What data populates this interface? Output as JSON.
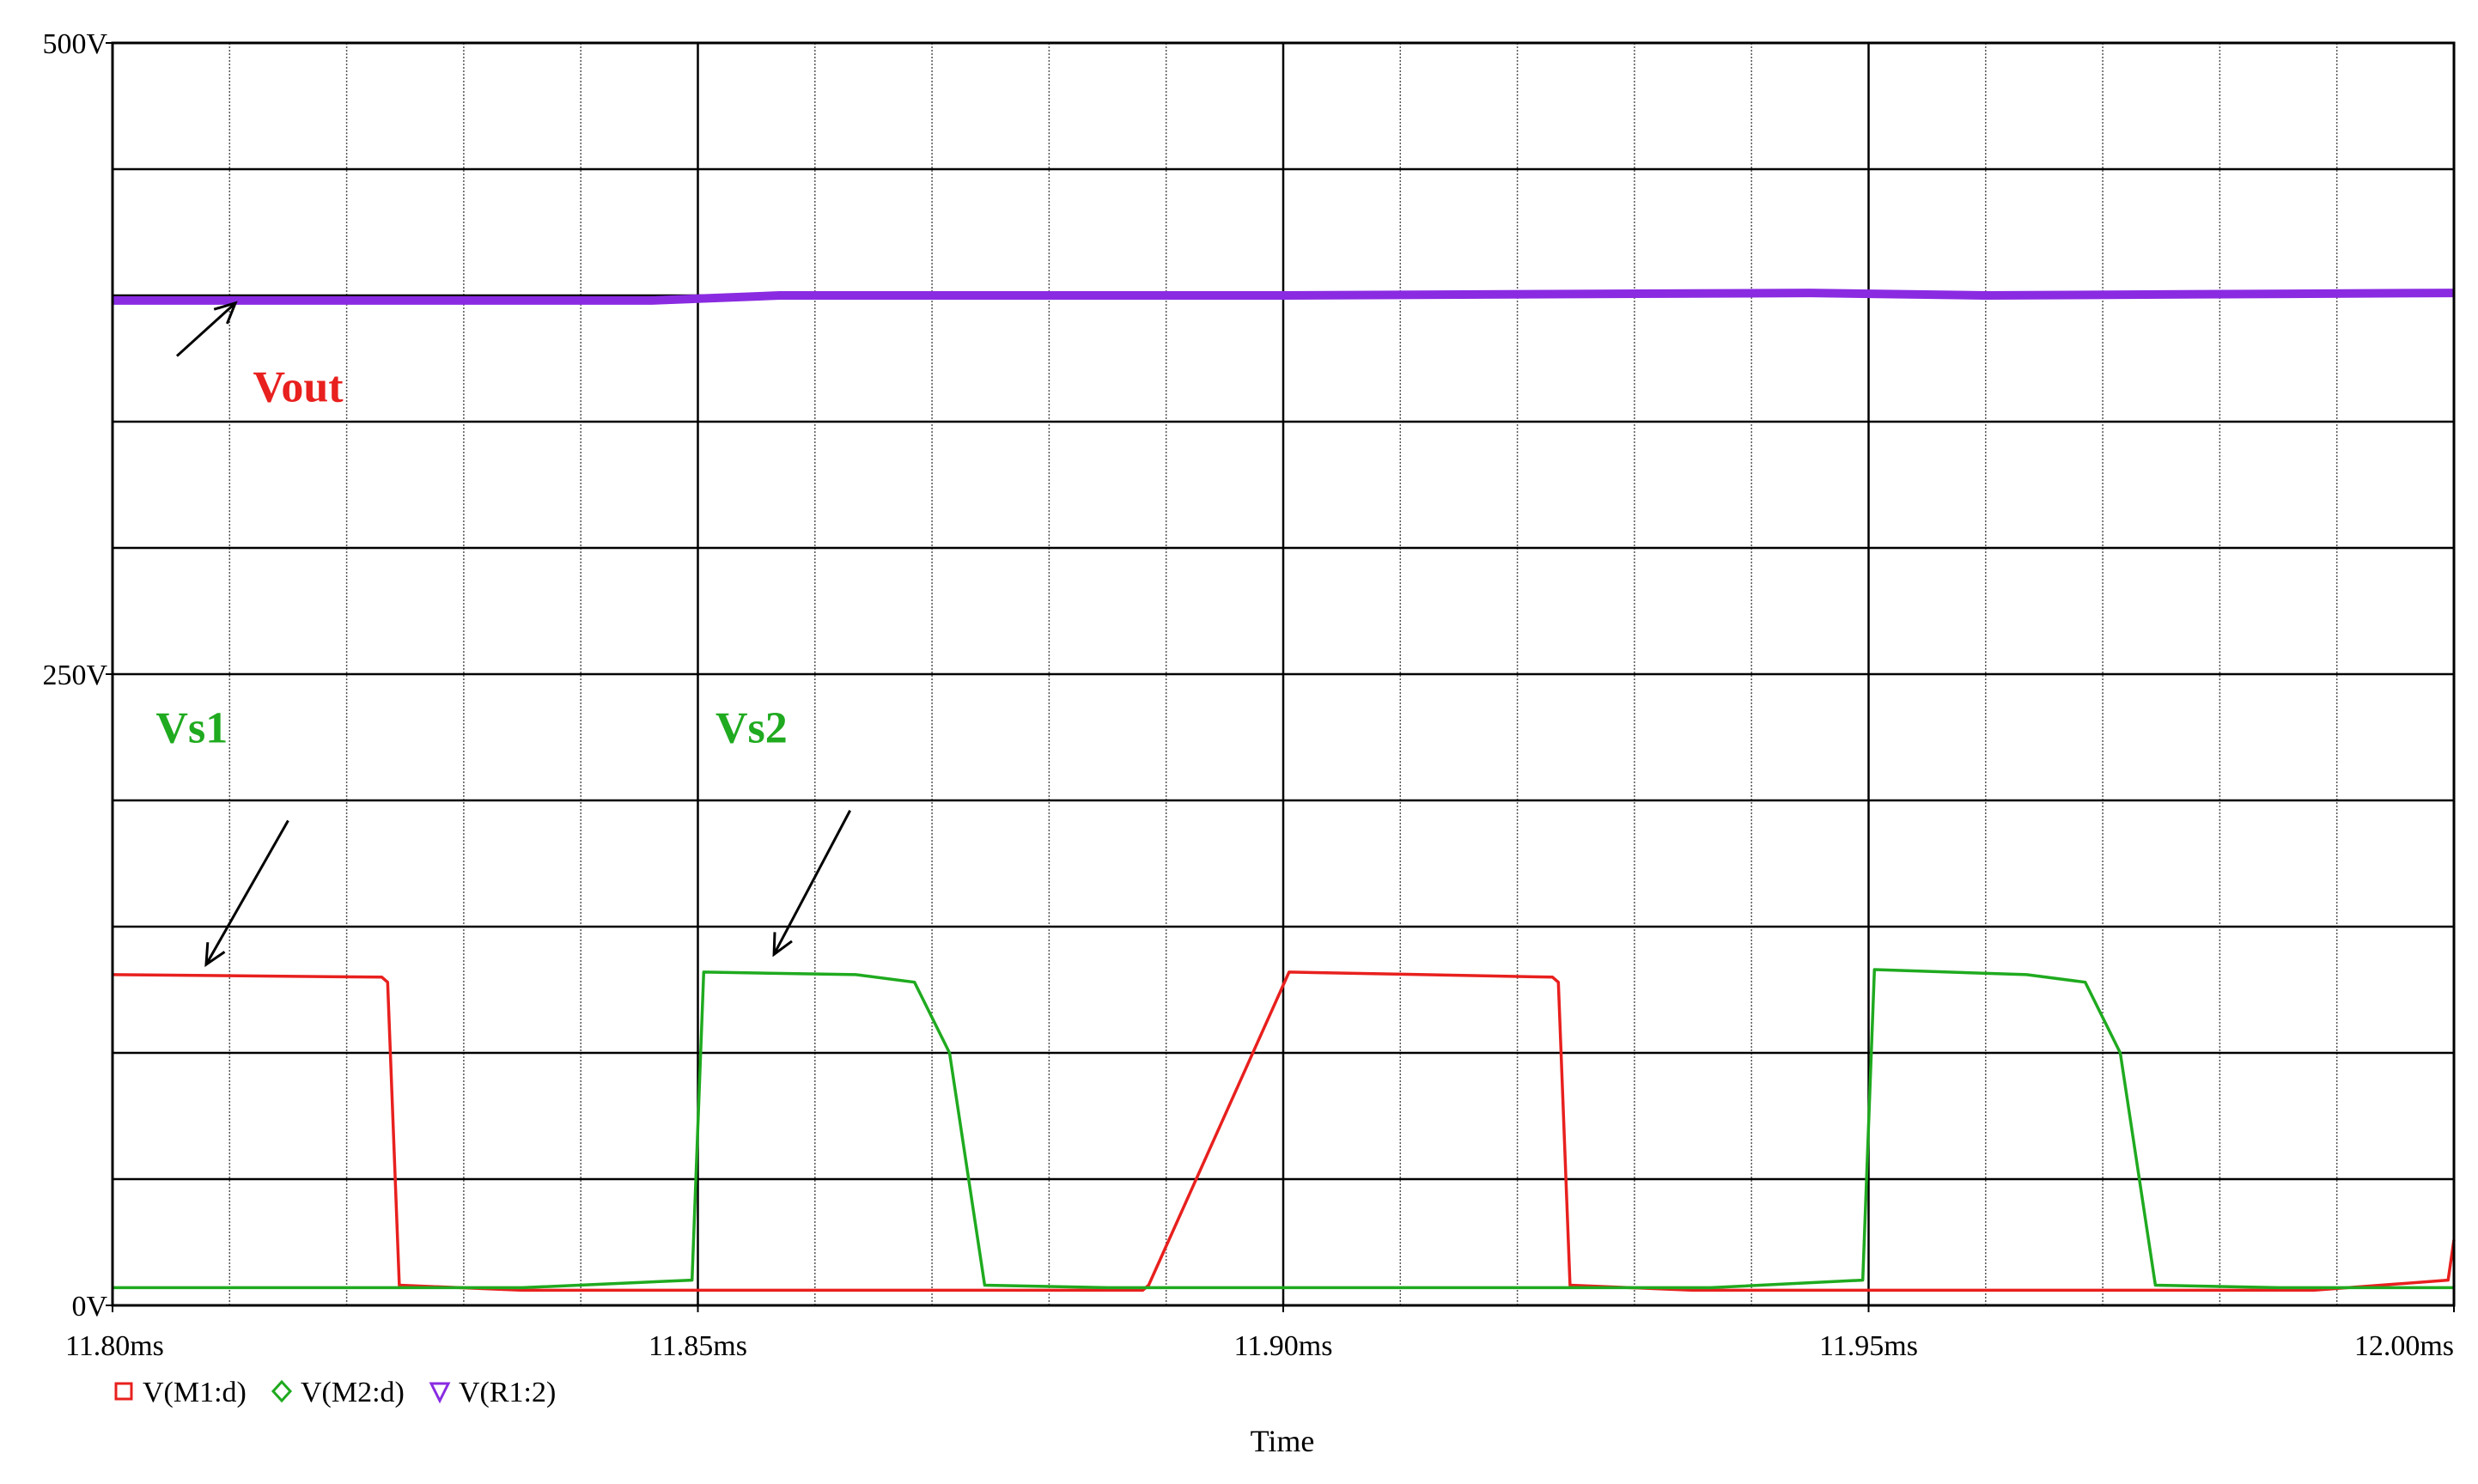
{
  "chart_data": {
    "type": "line",
    "title": "",
    "xlabel": "Time",
    "ylabel": "",
    "x_unit": "ms",
    "xlim": [
      11.8,
      12.0
    ],
    "ylim": [
      0,
      500
    ],
    "grid": true,
    "x_ticks": [
      {
        "value": 11.8,
        "label": "11.80ms"
      },
      {
        "value": 11.85,
        "label": "11.85ms"
      },
      {
        "value": 11.9,
        "label": "11.90ms"
      },
      {
        "value": 11.95,
        "label": "11.95ms"
      },
      {
        "value": 12.0,
        "label": "12.00ms"
      }
    ],
    "y_ticks": [
      {
        "value": 0,
        "label": "0V"
      },
      {
        "value": 250,
        "label": "250V"
      },
      {
        "value": 500,
        "label": "500V"
      }
    ],
    "legend_position": "bottom-left",
    "series": [
      {
        "name": "V(M1:d)",
        "color": "#e8201e",
        "marker": "square",
        "x": [
          11.8,
          11.823,
          11.8235,
          11.8245,
          11.835,
          11.888,
          11.8885,
          11.9005,
          11.923,
          11.9235,
          11.9245,
          11.935,
          11.988,
          11.9995,
          12.0
        ],
        "y": [
          131,
          130,
          128,
          8,
          6,
          6,
          8,
          132,
          130,
          128,
          8,
          6,
          6,
          10,
          26
        ]
      },
      {
        "name": "V(M2:d)",
        "color": "#1faa1f",
        "marker": "diamond",
        "x": [
          11.8,
          11.835,
          11.8495,
          11.8505,
          11.8635,
          11.8685,
          11.8715,
          11.8745,
          11.885,
          11.9365,
          11.9495,
          11.9505,
          11.9635,
          11.9685,
          11.9715,
          11.9745,
          11.985,
          12.0
        ],
        "y": [
          7,
          7,
          10,
          132,
          131,
          128,
          100,
          8,
          7,
          7,
          10,
          133,
          131,
          128,
          100,
          8,
          7,
          7
        ]
      },
      {
        "name": "V(R1:2)",
        "color": "#8a2be2",
        "marker": "triangle-down",
        "x": [
          11.8,
          11.846,
          11.857,
          11.9,
          11.945,
          11.96,
          12.0
        ],
        "y": [
          398,
          398,
          400,
          400,
          401,
          400,
          401
        ]
      }
    ],
    "annotations": [
      {
        "text": "Vout",
        "color": "#e8201e",
        "x": 11.812,
        "y": 358,
        "arrow_from": [
          11.8055,
          376
        ],
        "arrow_to": [
          11.8105,
          397
        ]
      },
      {
        "text": "Vs1",
        "color": "#1faa1f",
        "x": 11.8037,
        "y": 223,
        "arrow_from": [
          11.815,
          192
        ],
        "arrow_to": [
          11.808,
          135
        ]
      },
      {
        "text": "Vs2",
        "color": "#1faa1f",
        "x": 11.8515,
        "y": 223,
        "arrow_from": [
          11.863,
          196
        ],
        "arrow_to": [
          11.8565,
          139
        ]
      }
    ]
  }
}
